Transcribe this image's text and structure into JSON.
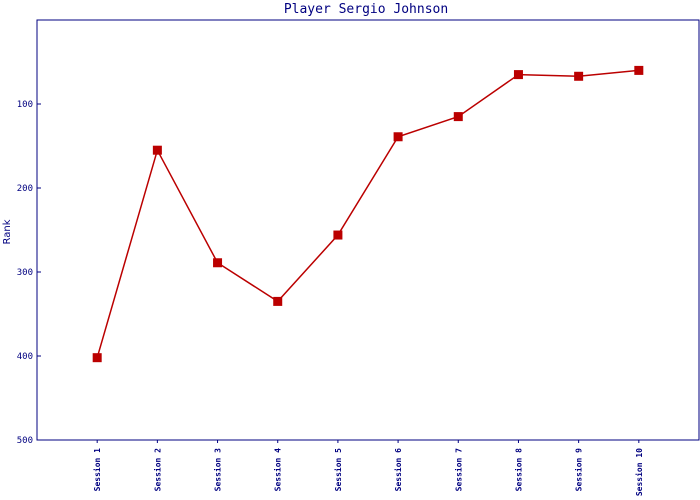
{
  "chart_data": {
    "type": "line",
    "title": "Player Sergio Johnson",
    "ylabel": "Rank",
    "categories": [
      "Session 1",
      "Session 2",
      "Session 3",
      "Session 4",
      "Session 5",
      "Session 6",
      "Session 7",
      "Session 8",
      "Session 9",
      "Session 10"
    ],
    "series": [
      {
        "name": "Rank",
        "color": "#bb0000",
        "values": [
          402,
          155,
          289,
          335,
          256,
          139,
          115,
          65,
          67,
          60
        ]
      }
    ],
    "ylim": [
      0,
      500
    ],
    "yticks": [
      100,
      200,
      300,
      400,
      500
    ],
    "y_inverted": true,
    "legend": false
  }
}
